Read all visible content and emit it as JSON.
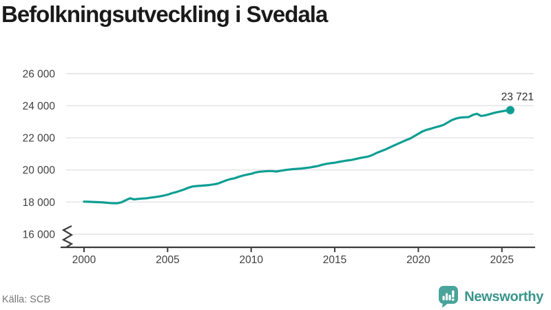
{
  "page": {
    "title": "Befolkningsutveckling i Svedala",
    "source": "Källa: SCB"
  },
  "branding": {
    "name": "Newsworthy",
    "icon": "newsworthy-speech-bubble-bar-chart-icon"
  },
  "colors": {
    "background": "#ffffff",
    "line": "#0d9e93",
    "end_dot": "#0d9e93",
    "grid": "#e2e2e2",
    "axis": "#3b3b3b",
    "tick_label": "#3f3f3f",
    "title": "#1a1a1a",
    "end_label": "#2b2b2b",
    "source": "#767676",
    "brand_icon": "#4aa49b",
    "brand_text": "#3a948c"
  },
  "chart_data": {
    "type": "line",
    "title": "Befolkningsutveckling i Svedala",
    "xlabel": "",
    "ylabel": "",
    "x_start": 2000,
    "x_step": 0.25,
    "values": [
      18030,
      18020,
      18010,
      18000,
      17990,
      17970,
      17940,
      17930,
      17930,
      17990,
      18120,
      18240,
      18170,
      18200,
      18220,
      18240,
      18280,
      18310,
      18350,
      18400,
      18460,
      18550,
      18620,
      18700,
      18790,
      18900,
      18970,
      19000,
      19020,
      19040,
      19060,
      19100,
      19150,
      19250,
      19350,
      19430,
      19480,
      19570,
      19650,
      19710,
      19760,
      19840,
      19890,
      19910,
      19930,
      19930,
      19900,
      19950,
      19990,
      20020,
      20050,
      20070,
      20090,
      20120,
      20150,
      20200,
      20250,
      20320,
      20380,
      20420,
      20450,
      20500,
      20550,
      20590,
      20620,
      20680,
      20740,
      20790,
      20830,
      20930,
      21060,
      21160,
      21260,
      21380,
      21500,
      21620,
      21730,
      21850,
      21950,
      22100,
      22250,
      22400,
      22500,
      22570,
      22650,
      22720,
      22800,
      22950,
      23100,
      23200,
      23260,
      23280,
      23290,
      23420,
      23500,
      23360,
      23400,
      23470,
      23540,
      23600,
      23650,
      23690,
      23721
    ],
    "x_ticks": [
      2000,
      2005,
      2010,
      2015,
      2020,
      2025
    ],
    "x_tick_labels": [
      "2000",
      "2005",
      "2010",
      "2015",
      "2020",
      "2025"
    ],
    "y_ticks": [
      16000,
      18000,
      20000,
      22000,
      24000,
      26000
    ],
    "y_tick_labels": [
      "16 000",
      "18 000",
      "20 000",
      "22 000",
      "24 000",
      "26 000"
    ],
    "ylim": [
      16000,
      26000
    ],
    "y_axis_break": true,
    "grid": "horizontal",
    "legend": "none",
    "end_point": {
      "value": 23721,
      "label": "23 721"
    }
  }
}
